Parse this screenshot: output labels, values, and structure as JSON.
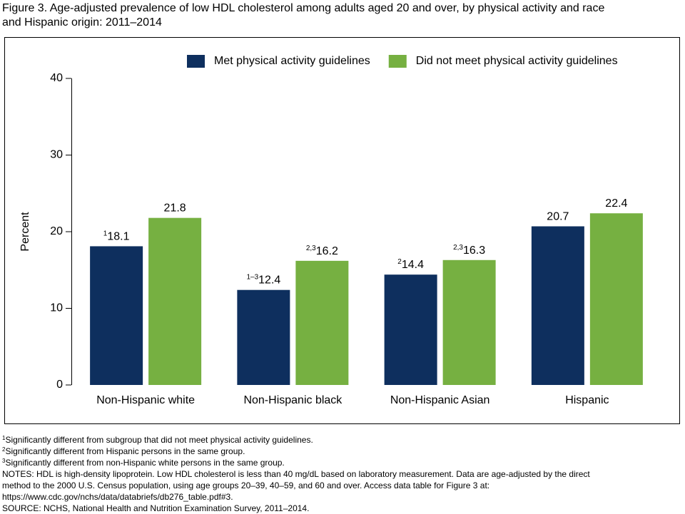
{
  "chart_data": {
    "type": "bar",
    "title": [
      "Figure 3. Age-adjusted prevalence of low HDL cholesterol among adults aged 20 and over, by physical activity and race",
      "and Hispanic origin: 2011–2014"
    ],
    "y_label": "Percent",
    "categories": [
      "Non-Hispanic white",
      "Non-Hispanic black",
      "Non-Hispanic Asian",
      "Hispanic"
    ],
    "series": [
      {
        "name": "Met physical activity guidelines",
        "color": "#0e2f5e",
        "values": [
          18.1,
          12.4,
          14.4,
          20.7
        ],
        "notes": [
          "1",
          "1–3",
          "2",
          null
        ]
      },
      {
        "name": "Did not meet physical activity guidelines",
        "color": "#76b041",
        "values": [
          21.8,
          16.2,
          16.3,
          22.4
        ],
        "notes": [
          null,
          "2,3",
          "2,3",
          null
        ]
      }
    ],
    "ylim": [
      0,
      40
    ],
    "yticks": [
      0,
      10,
      20,
      30,
      40
    ],
    "legend": "top-right",
    "footnotes": [
      {
        "mark": "1",
        "text": "Significantly different from subgroup that did not meet physical activity guidelines."
      },
      {
        "mark": "2",
        "text": "Significantly different from Hispanic persons in the same group."
      },
      {
        "mark": "3",
        "text": "Significantly different from non-Hispanic white persons in the same group."
      }
    ],
    "notes": [
      "NOTES: HDL is high-density lipoprotein. Low HDL cholesterol is less than 40 mg/dL based on laboratory measurement. Data are age-adjusted by the direct",
      "method to the 2000 U.S. Census population, using age groups 20–39, 40–59, and 60 and over. Access data table for Figure 3 at:",
      "https://www.cdc.gov/nchs/data/databriefs/db276_table.pdf#3.",
      "SOURCE: NCHS, National Health and Nutrition Examination Survey, 2011–2014."
    ]
  }
}
